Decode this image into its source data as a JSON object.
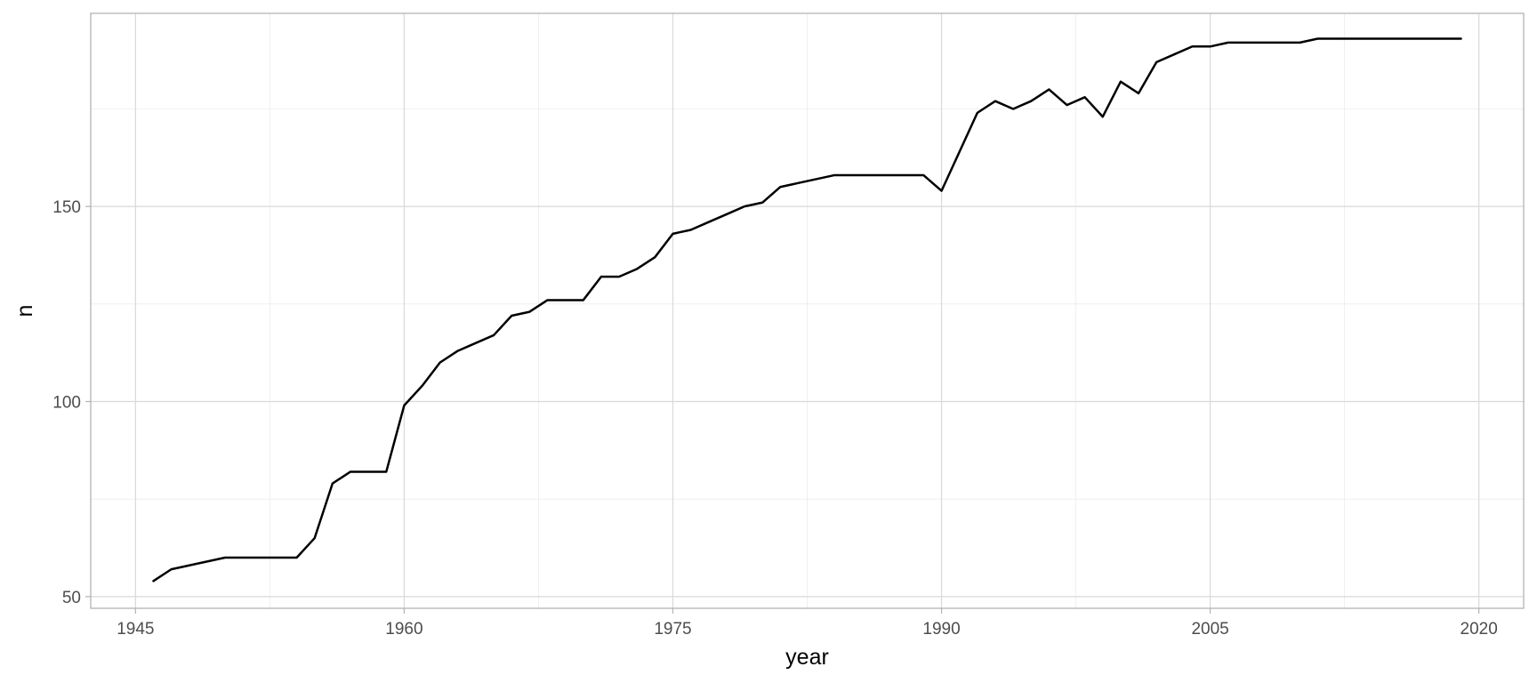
{
  "chart_data": {
    "type": "line",
    "title": "",
    "xlabel": "year",
    "ylabel": "n",
    "xlim": [
      1942.5,
      2022.5
    ],
    "ylim": [
      47,
      199.5
    ],
    "x_major_ticks": [
      1945,
      1960,
      1975,
      1990,
      2005,
      2020
    ],
    "x_minor_ticks": [
      1952.5,
      1967.5,
      1982.5,
      1997.5,
      2012.5
    ],
    "y_major_ticks": [
      50,
      100,
      150
    ],
    "y_minor_ticks": [
      75,
      125,
      175
    ],
    "x_tick_labels": [
      "1945",
      "1960",
      "1975",
      "1990",
      "2005",
      "2020"
    ],
    "y_tick_labels": [
      "50",
      "100",
      "150"
    ],
    "grid": true,
    "legend": "none",
    "line_color": "#000000",
    "series": [
      {
        "x": [
          1946,
          1947,
          1948,
          1949,
          1950,
          1951,
          1952,
          1953,
          1954,
          1955,
          1956,
          1957,
          1958,
          1959,
          1960,
          1961,
          1962,
          1963,
          1964,
          1965,
          1966,
          1967,
          1968,
          1969,
          1970,
          1971,
          1972,
          1973,
          1974,
          1975,
          1976,
          1977,
          1978,
          1979,
          1980,
          1981,
          1982,
          1983,
          1984,
          1985,
          1986,
          1987,
          1988,
          1989,
          1990,
          1991,
          1992,
          1993,
          1994,
          1995,
          1996,
          1997,
          1998,
          1999,
          2000,
          2001,
          2002,
          2003,
          2004,
          2005,
          2006,
          2007,
          2008,
          2009,
          2010,
          2011,
          2012,
          2013,
          2014,
          2015,
          2016,
          2017,
          2018,
          2019
        ],
        "y": [
          54,
          57,
          58,
          59,
          60,
          60,
          60,
          60,
          60,
          65,
          79,
          82,
          82,
          82,
          99,
          104,
          110,
          113,
          115,
          117,
          122,
          123,
          126,
          126,
          126,
          132,
          132,
          134,
          137,
          143,
          144,
          146,
          148,
          150,
          151,
          155,
          156,
          157,
          158,
          158,
          158,
          158,
          158,
          158,
          154,
          164,
          174,
          177,
          175,
          177,
          180,
          176,
          178,
          173,
          182,
          179,
          187,
          189,
          191,
          191,
          192,
          192,
          192,
          192,
          192,
          193,
          193,
          193,
          193,
          193,
          193,
          193,
          193,
          193
        ]
      }
    ]
  }
}
